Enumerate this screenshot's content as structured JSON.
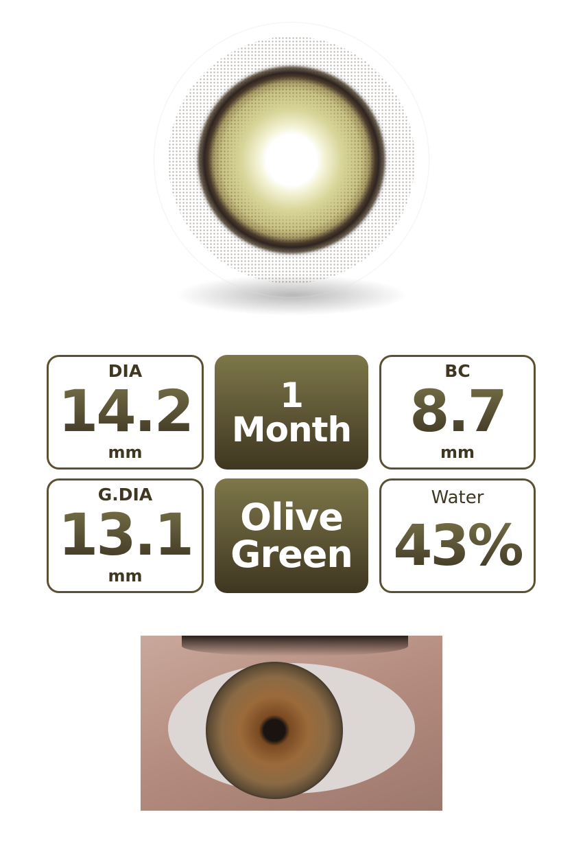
{
  "specs": {
    "dia": {
      "label": "DIA",
      "value": "14.2",
      "unit": "mm"
    },
    "duration": "1 Month",
    "bc": {
      "label": "BC",
      "value": "8.7",
      "unit": "mm"
    },
    "gdia": {
      "label": "G.DIA",
      "value": "13.1",
      "unit": "mm"
    },
    "color": {
      "line1": "Olive",
      "line2": "Green"
    },
    "water": {
      "label": "Water",
      "value": "43%"
    }
  },
  "colors": {
    "accent_top": "#7d774a",
    "accent_bottom": "#3f3620"
  }
}
